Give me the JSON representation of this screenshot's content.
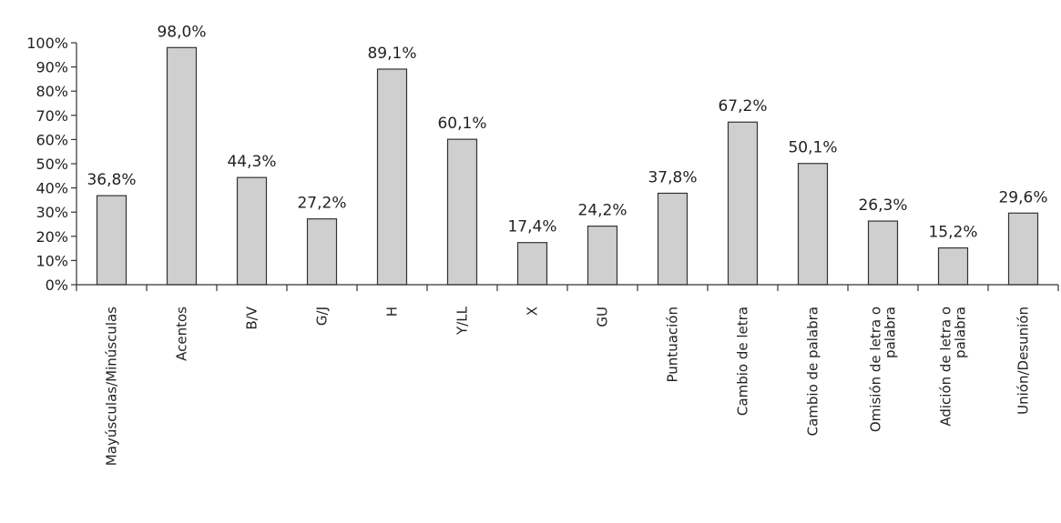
{
  "chart_data": {
    "type": "bar",
    "title": "",
    "xlabel": "",
    "ylabel": "",
    "ylim": [
      0,
      100
    ],
    "yticks": [
      "0%",
      "10%",
      "20%",
      "30%",
      "40%",
      "50%",
      "60%",
      "70%",
      "80%",
      "90%",
      "100%"
    ],
    "grid": false,
    "legend": "none",
    "bar_color": "#cfcfcf",
    "categories": [
      [
        "Mayúsculas/Minúsculas"
      ],
      [
        "Acentos"
      ],
      [
        "B/V"
      ],
      [
        "G/J"
      ],
      [
        "H"
      ],
      [
        "Y/LL"
      ],
      [
        "X"
      ],
      [
        "GU"
      ],
      [
        "Puntuación"
      ],
      [
        "Cambio de letra"
      ],
      [
        "Cambio de palabra"
      ],
      [
        "Omisión de letra o",
        "palabra"
      ],
      [
        "Adición de letra o",
        "palabra"
      ],
      [
        "Unión/Desunión"
      ]
    ],
    "values": [
      36.8,
      98.0,
      44.3,
      27.2,
      89.1,
      60.1,
      17.4,
      24.2,
      37.8,
      67.2,
      50.1,
      26.3,
      15.2,
      29.6
    ],
    "data_labels": [
      "36,8%",
      "98,0%",
      "44,3%",
      "27,2%",
      "89,1%",
      "60,1%",
      "17,4%",
      "24,2%",
      "37,8%",
      "67,2%",
      "50,1%",
      "26,3%",
      "15,2%",
      "29,6%"
    ]
  }
}
